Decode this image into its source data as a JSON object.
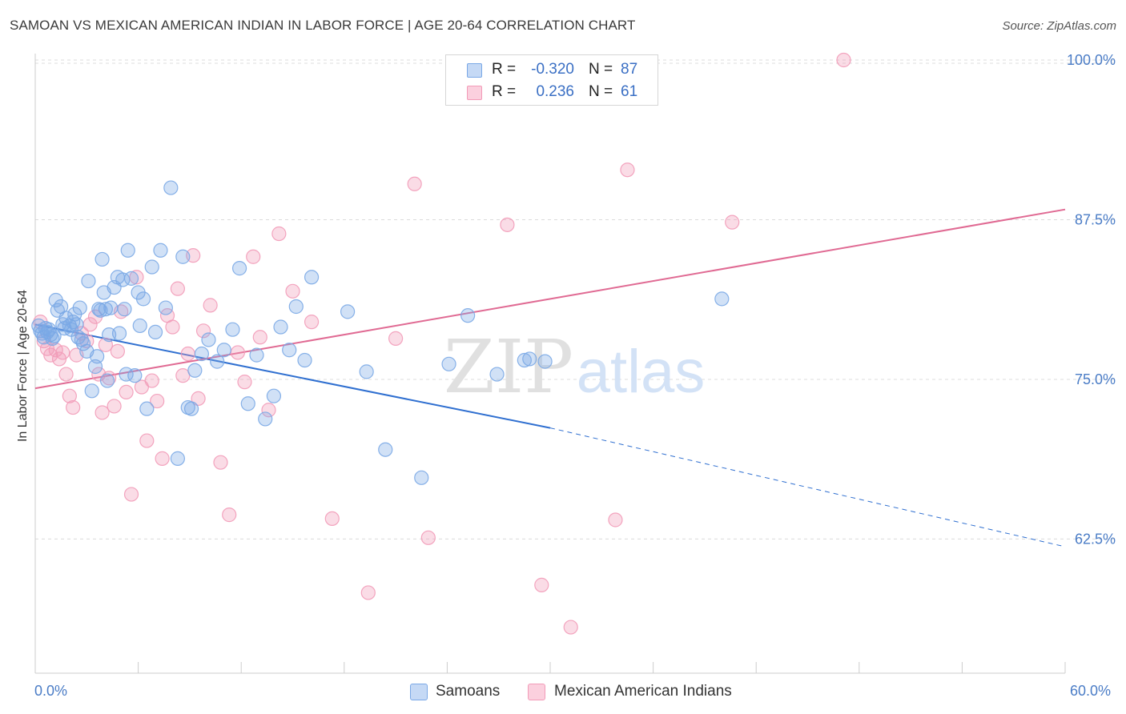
{
  "title": "SAMOAN VS MEXICAN AMERICAN INDIAN IN LABOR FORCE | AGE 20-64 CORRELATION CHART",
  "source": "Source: ZipAtlas.com",
  "watermark": {
    "zip": "ZIP",
    "atlas": "atlas"
  },
  "colors": {
    "blue": "#7aa8e6",
    "blue_line": "#2f6fd0",
    "pink": "#f29bb8",
    "pink_line": "#e06a93",
    "tick_text": "#4a7cc6",
    "grid": "#dcdcdc"
  },
  "legend_top": {
    "rows": [
      {
        "r_label": "R =",
        "r_value": "-0.320",
        "n_label": "N =",
        "n_value": "87"
      },
      {
        "r_label": "R =",
        "r_value": "0.236",
        "n_label": "N =",
        "n_value": "61"
      }
    ]
  },
  "legend_bottom": [
    "Samoans",
    "Mexican American Indians"
  ],
  "chart_data": {
    "type": "scatter",
    "xlabel": "",
    "ylabel": "In Labor Force | Age 20-64",
    "xlim": [
      0,
      60
    ],
    "ylim": [
      52,
      100.5
    ],
    "x_tick_labels": [
      "0.0%",
      "60.0%"
    ],
    "y_ticks": [
      62.5,
      75.0,
      87.5,
      100.0
    ],
    "y_tick_labels": [
      "62.5%",
      "75.0%",
      "87.5%",
      "100.0%"
    ],
    "grid": true,
    "legend_placement": "top-center",
    "series": [
      {
        "name": "Samoans",
        "r": -0.32,
        "n": 87,
        "trend": {
          "x0": 0,
          "y0": 79.3,
          "x1": 30,
          "y1": 71.2,
          "dashed_to_x": 60,
          "dashed_to_y": 61.9
        },
        "points": [
          [
            0.2,
            79.2
          ],
          [
            0.3,
            78.8
          ],
          [
            0.4,
            78.6
          ],
          [
            0.5,
            78.3
          ],
          [
            0.6,
            79.0
          ],
          [
            0.7,
            78.7
          ],
          [
            0.8,
            78.9
          ],
          [
            0.9,
            78.5
          ],
          [
            1.0,
            78.2
          ],
          [
            1.1,
            78.4
          ],
          [
            1.2,
            81.2
          ],
          [
            1.3,
            80.4
          ],
          [
            1.5,
            80.7
          ],
          [
            1.6,
            79.3
          ],
          [
            1.7,
            79.0
          ],
          [
            1.8,
            79.8
          ],
          [
            2.0,
            79.2
          ],
          [
            2.1,
            78.9
          ],
          [
            2.2,
            79.5
          ],
          [
            2.3,
            80.1
          ],
          [
            2.4,
            79.3
          ],
          [
            2.5,
            78.3
          ],
          [
            2.6,
            80.6
          ],
          [
            2.7,
            78.1
          ],
          [
            2.8,
            77.8
          ],
          [
            3.0,
            77.2
          ],
          [
            3.1,
            82.7
          ],
          [
            3.3,
            74.1
          ],
          [
            3.5,
            76.0
          ],
          [
            3.6,
            76.8
          ],
          [
            3.7,
            80.5
          ],
          [
            3.8,
            80.4
          ],
          [
            3.9,
            84.4
          ],
          [
            4.0,
            81.8
          ],
          [
            4.1,
            80.5
          ],
          [
            4.2,
            74.9
          ],
          [
            4.3,
            78.5
          ],
          [
            4.4,
            80.6
          ],
          [
            4.6,
            82.2
          ],
          [
            4.8,
            83.0
          ],
          [
            4.9,
            78.6
          ],
          [
            5.1,
            82.8
          ],
          [
            5.2,
            80.5
          ],
          [
            5.3,
            75.4
          ],
          [
            5.4,
            85.1
          ],
          [
            5.6,
            82.9
          ],
          [
            5.8,
            75.3
          ],
          [
            6.0,
            81.8
          ],
          [
            6.1,
            79.2
          ],
          [
            6.3,
            81.3
          ],
          [
            6.5,
            72.7
          ],
          [
            6.8,
            83.8
          ],
          [
            7.0,
            78.7
          ],
          [
            7.3,
            85.1
          ],
          [
            7.6,
            80.6
          ],
          [
            7.9,
            90.0
          ],
          [
            8.3,
            68.8
          ],
          [
            8.6,
            84.6
          ],
          [
            8.9,
            72.8
          ],
          [
            9.1,
            72.7
          ],
          [
            9.3,
            75.7
          ],
          [
            9.7,
            77.0
          ],
          [
            10.1,
            78.1
          ],
          [
            10.6,
            76.4
          ],
          [
            11.0,
            77.3
          ],
          [
            11.5,
            78.9
          ],
          [
            11.9,
            83.7
          ],
          [
            12.4,
            73.1
          ],
          [
            12.9,
            76.9
          ],
          [
            13.4,
            71.9
          ],
          [
            13.9,
            73.7
          ],
          [
            14.3,
            79.1
          ],
          [
            14.8,
            77.3
          ],
          [
            15.2,
            80.7
          ],
          [
            15.7,
            76.5
          ],
          [
            16.1,
            83.0
          ],
          [
            18.2,
            80.3
          ],
          [
            19.3,
            75.6
          ],
          [
            20.4,
            69.5
          ],
          [
            22.5,
            67.3
          ],
          [
            24.1,
            76.2
          ],
          [
            25.2,
            80.0
          ],
          [
            26.9,
            75.4
          ],
          [
            28.5,
            76.5
          ],
          [
            28.8,
            76.6
          ],
          [
            29.7,
            76.4
          ],
          [
            40.0,
            81.3
          ]
        ]
      },
      {
        "name": "Mexican American Indians",
        "r": 0.236,
        "n": 61,
        "trend": {
          "x0": 0,
          "y0": 74.3,
          "x1": 60,
          "y1": 88.3
        },
        "points": [
          [
            0.3,
            79.5
          ],
          [
            0.5,
            78.0
          ],
          [
            0.7,
            77.4
          ],
          [
            0.9,
            76.9
          ],
          [
            1.2,
            77.3
          ],
          [
            1.4,
            76.6
          ],
          [
            1.6,
            77.1
          ],
          [
            1.8,
            75.4
          ],
          [
            2.0,
            73.7
          ],
          [
            2.2,
            72.8
          ],
          [
            2.4,
            76.9
          ],
          [
            2.7,
            78.6
          ],
          [
            3.0,
            78.0
          ],
          [
            3.2,
            79.3
          ],
          [
            3.5,
            79.9
          ],
          [
            3.7,
            75.4
          ],
          [
            3.9,
            72.4
          ],
          [
            4.1,
            77.7
          ],
          [
            4.3,
            75.1
          ],
          [
            4.6,
            72.9
          ],
          [
            4.8,
            77.2
          ],
          [
            5.0,
            80.3
          ],
          [
            5.3,
            74.0
          ],
          [
            5.6,
            66.0
          ],
          [
            5.9,
            83.0
          ],
          [
            6.2,
            74.4
          ],
          [
            6.5,
            70.2
          ],
          [
            6.8,
            74.9
          ],
          [
            7.1,
            73.3
          ],
          [
            7.4,
            68.8
          ],
          [
            7.7,
            80.0
          ],
          [
            8.0,
            79.1
          ],
          [
            8.3,
            82.1
          ],
          [
            8.6,
            75.3
          ],
          [
            8.9,
            77.0
          ],
          [
            9.2,
            84.7
          ],
          [
            9.5,
            73.5
          ],
          [
            9.8,
            78.8
          ],
          [
            10.2,
            80.8
          ],
          [
            10.8,
            68.5
          ],
          [
            11.3,
            64.4
          ],
          [
            11.8,
            77.1
          ],
          [
            12.2,
            74.8
          ],
          [
            12.7,
            84.6
          ],
          [
            13.1,
            78.3
          ],
          [
            13.6,
            72.6
          ],
          [
            14.2,
            86.4
          ],
          [
            15.0,
            81.9
          ],
          [
            16.1,
            79.5
          ],
          [
            17.3,
            64.1
          ],
          [
            19.4,
            58.3
          ],
          [
            21.0,
            78.2
          ],
          [
            22.1,
            90.3
          ],
          [
            22.9,
            62.6
          ],
          [
            27.5,
            87.1
          ],
          [
            29.5,
            58.9
          ],
          [
            31.2,
            55.6
          ],
          [
            33.8,
            64.0
          ],
          [
            34.5,
            91.4
          ],
          [
            40.6,
            87.3
          ],
          [
            47.1,
            100.0
          ]
        ]
      }
    ]
  }
}
